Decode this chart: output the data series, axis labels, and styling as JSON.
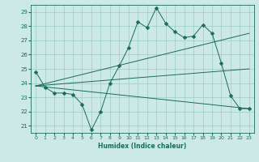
{
  "xlabel": "Humidex (Indice chaleur)",
  "xlim": [
    -0.5,
    23.5
  ],
  "ylim": [
    20.5,
    29.5
  ],
  "yticks": [
    21,
    22,
    23,
    24,
    25,
    26,
    27,
    28,
    29
  ],
  "xticks": [
    0,
    1,
    2,
    3,
    4,
    5,
    6,
    7,
    8,
    9,
    10,
    11,
    12,
    13,
    14,
    15,
    16,
    17,
    18,
    19,
    20,
    21,
    22,
    23
  ],
  "bg_color": "#cce9e5",
  "grid_color": "#9ccbc6",
  "line_color": "#1a6b5e",
  "lines": [
    {
      "x": [
        0,
        1,
        2,
        3,
        4,
        5,
        6,
        7,
        8,
        9,
        10,
        11,
        12,
        13,
        14,
        15,
        16,
        17,
        18,
        19,
        20,
        21,
        22,
        23
      ],
      "y": [
        24.8,
        23.7,
        23.3,
        23.3,
        23.2,
        22.5,
        20.7,
        22.0,
        24.0,
        25.2,
        26.5,
        28.3,
        27.9,
        29.3,
        28.2,
        27.6,
        27.2,
        27.3,
        28.1,
        27.5,
        25.4,
        23.1,
        22.2,
        22.2
      ],
      "marker": "D",
      "marker_size": 2.5
    },
    {
      "x": [
        0,
        23
      ],
      "y": [
        23.8,
        27.5
      ],
      "marker": null,
      "marker_size": 0
    },
    {
      "x": [
        0,
        23
      ],
      "y": [
        23.8,
        22.2
      ],
      "marker": null,
      "marker_size": 0
    },
    {
      "x": [
        0,
        23
      ],
      "y": [
        23.8,
        25.0
      ],
      "marker": null,
      "marker_size": 0
    }
  ]
}
